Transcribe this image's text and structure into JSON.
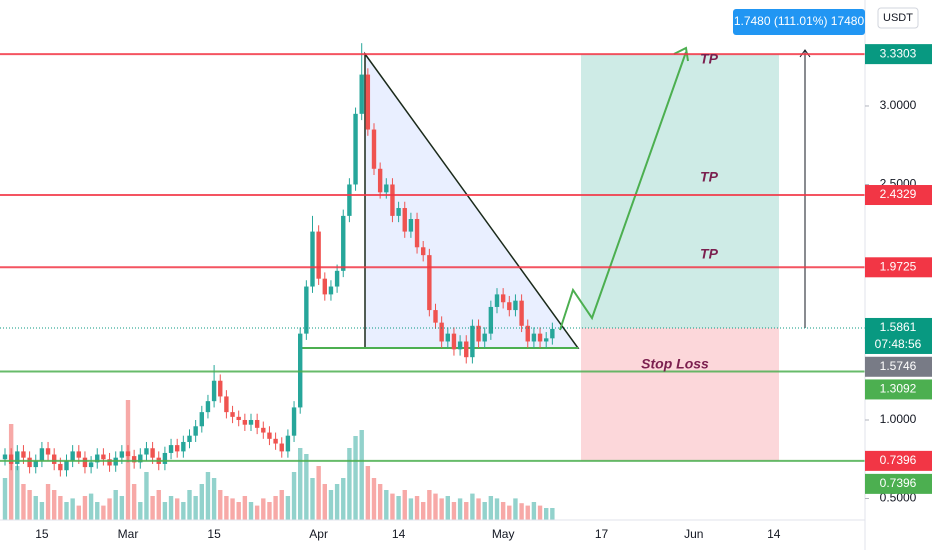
{
  "chart_data": {
    "type": "candlestick",
    "currency": "USDT",
    "measure_label": "1.7480 (111.01%) 17480",
    "countdown": "07:48:56",
    "annotations": [
      "TP",
      "TP",
      "TP",
      "Stop Loss"
    ],
    "up_color": "#26a69a",
    "down_color": "#ef5350",
    "ylim": [
      0.363,
      3.675
    ],
    "yticks": [
      {
        "value": 0.5,
        "label": "0.5000"
      },
      {
        "value": 1,
        "label": "1.0000"
      },
      {
        "value": 2.5,
        "label": "2.5000"
      },
      {
        "value": 3,
        "label": "3.0000"
      }
    ],
    "categories": [
      null,
      null,
      null,
      null,
      null,
      null,
      "15",
      null,
      null,
      null,
      null,
      null,
      null,
      null,
      null,
      null,
      null,
      null,
      null,
      null,
      "Mar",
      null,
      null,
      null,
      null,
      null,
      null,
      null,
      null,
      null,
      null,
      null,
      null,
      null,
      "15",
      null,
      null,
      null,
      null,
      null,
      null,
      null,
      null,
      null,
      null,
      null,
      null,
      null,
      null,
      null,
      null,
      "Apr",
      null,
      null,
      null,
      null,
      null,
      null,
      null,
      null,
      null,
      null,
      null,
      null,
      "14",
      null,
      null,
      null,
      null,
      null,
      null,
      null,
      null,
      null,
      null,
      null,
      null,
      null,
      null,
      null,
      null,
      "May",
      null,
      null,
      null,
      null,
      null,
      null,
      null,
      null,
      null,
      null,
      null,
      null,
      null,
      null,
      null,
      "17",
      null,
      null,
      null,
      null,
      null,
      null,
      null,
      null,
      null,
      null,
      null,
      null,
      null,
      null,
      "Jun",
      null,
      null,
      null,
      null,
      null,
      null,
      null,
      null,
      null,
      null,
      null,
      null,
      "14"
    ],
    "open": [
      0.75,
      0.78,
      0.72,
      0.8,
      0.76,
      0.7,
      0.74,
      0.82,
      0.78,
      0.72,
      0.68,
      0.74,
      0.8,
      0.76,
      0.7,
      0.73,
      0.78,
      0.75,
      0.71,
      0.76,
      0.8,
      0.77,
      0.73,
      0.78,
      0.82,
      0.76,
      0.72,
      0.79,
      0.84,
      0.8,
      0.86,
      0.9,
      0.96,
      1.05,
      1.12,
      1.25,
      1.15,
      1.05,
      1.02,
      1.0,
      0.97,
      1.0,
      0.95,
      0.92,
      0.88,
      0.85,
      0.8,
      0.9,
      1.08,
      1.55,
      1.85,
      2.2,
      1.9,
      1.8,
      1.85,
      1.95,
      2.3,
      2.5,
      2.95,
      3.2,
      2.85,
      2.6,
      2.45,
      2.5,
      2.3,
      2.35,
      2.2,
      2.28,
      2.1,
      2.05,
      1.7,
      1.62,
      1.5,
      1.55,
      1.45,
      1.5,
      1.4,
      1.6,
      1.5,
      1.55,
      1.72,
      1.8,
      1.75,
      1.7,
      1.76,
      1.6,
      1.5,
      1.55,
      1.5,
      1.52,
      null,
      null,
      null,
      null,
      null,
      null,
      null,
      null,
      null,
      null,
      null,
      null,
      null,
      null,
      null,
      null,
      null,
      null,
      null,
      null,
      null,
      null,
      null,
      null,
      null,
      null,
      null,
      null,
      null,
      null,
      null,
      null,
      null,
      null,
      null,
      null
    ],
    "high": [
      0.82,
      0.82,
      0.84,
      0.84,
      0.8,
      0.78,
      0.86,
      0.86,
      0.82,
      0.76,
      0.78,
      0.84,
      0.84,
      0.8,
      0.77,
      0.82,
      0.82,
      0.79,
      0.8,
      0.84,
      0.84,
      0.81,
      0.82,
      0.86,
      0.86,
      0.8,
      0.83,
      0.88,
      0.88,
      0.9,
      0.94,
      1.0,
      1.09,
      1.16,
      1.35,
      1.29,
      1.19,
      1.09,
      1.06,
      1.04,
      1.04,
      1.04,
      0.99,
      0.96,
      0.92,
      0.89,
      0.94,
      1.12,
      1.59,
      1.89,
      2.3,
      2.24,
      1.94,
      1.89,
      1.99,
      2.34,
      2.54,
      2.99,
      3.4,
      3.24,
      2.89,
      2.64,
      2.54,
      2.54,
      2.39,
      2.39,
      2.32,
      2.32,
      2.14,
      2.09,
      1.74,
      1.66,
      1.59,
      1.59,
      1.54,
      1.54,
      1.64,
      1.64,
      1.59,
      1.76,
      1.84,
      1.84,
      1.79,
      1.8,
      1.8,
      1.64,
      1.59,
      1.59,
      1.56,
      1.62,
      null,
      null,
      null,
      null,
      null,
      null,
      null,
      null,
      null,
      null,
      null,
      null,
      null,
      null,
      null,
      null,
      null,
      null,
      null,
      null,
      null,
      null,
      null,
      null,
      null,
      null,
      null,
      null,
      null,
      null,
      null,
      null,
      null,
      null,
      null,
      null
    ],
    "low": [
      0.71,
      0.68,
      0.68,
      0.72,
      0.66,
      0.66,
      0.7,
      0.74,
      0.68,
      0.64,
      0.64,
      0.7,
      0.72,
      0.66,
      0.66,
      0.69,
      0.71,
      0.67,
      0.67,
      0.72,
      0.73,
      0.69,
      0.69,
      0.74,
      0.72,
      0.68,
      0.68,
      0.75,
      0.76,
      0.76,
      0.82,
      0.86,
      0.92,
      1.01,
      1.08,
      1.11,
      1.01,
      0.98,
      0.96,
      0.93,
      0.93,
      0.91,
      0.88,
      0.84,
      0.81,
      0.76,
      0.76,
      0.86,
      1.04,
      1.51,
      1.81,
      1.86,
      1.76,
      1.76,
      1.81,
      1.91,
      2.26,
      2.46,
      2.91,
      2.81,
      2.56,
      2.41,
      2.41,
      2.26,
      2.26,
      2.16,
      2.16,
      2.06,
      2.01,
      1.66,
      1.58,
      1.46,
      1.46,
      1.41,
      1.41,
      1.36,
      1.36,
      1.46,
      1.46,
      1.51,
      1.68,
      1.71,
      1.66,
      1.66,
      1.56,
      1.46,
      1.46,
      1.46,
      1.46,
      1.48,
      null,
      null,
      null,
      null,
      null,
      null,
      null,
      null,
      null,
      null,
      null,
      null,
      null,
      null,
      null,
      null,
      null,
      null,
      null,
      null,
      null,
      null,
      null,
      null,
      null,
      null,
      null,
      null,
      null,
      null,
      null,
      null,
      null,
      null,
      null,
      null
    ],
    "close": [
      0.78,
      0.72,
      0.8,
      0.76,
      0.7,
      0.74,
      0.82,
      0.78,
      0.72,
      0.68,
      0.74,
      0.8,
      0.76,
      0.7,
      0.73,
      0.78,
      0.75,
      0.71,
      0.76,
      0.8,
      0.77,
      0.73,
      0.78,
      0.82,
      0.76,
      0.72,
      0.79,
      0.84,
      0.8,
      0.86,
      0.9,
      0.96,
      1.05,
      1.12,
      1.25,
      1.15,
      1.05,
      1.02,
      1.0,
      0.97,
      1.0,
      0.95,
      0.92,
      0.88,
      0.85,
      0.8,
      0.9,
      1.08,
      1.55,
      1.85,
      2.2,
      1.9,
      1.8,
      1.85,
      1.95,
      2.3,
      2.5,
      2.95,
      3.2,
      2.85,
      2.6,
      2.45,
      2.5,
      2.3,
      2.35,
      2.2,
      2.28,
      2.1,
      2.05,
      1.7,
      1.62,
      1.5,
      1.55,
      1.45,
      1.5,
      1.4,
      1.6,
      1.5,
      1.55,
      1.72,
      1.8,
      1.75,
      1.7,
      1.76,
      1.6,
      1.5,
      1.55,
      1.5,
      1.52,
      1.58,
      null,
      null,
      null,
      null,
      null,
      null,
      null,
      null,
      null,
      null,
      null,
      null,
      null,
      null,
      null,
      null,
      null,
      null,
      null,
      null,
      null,
      null,
      null,
      null,
      null,
      null,
      null,
      null,
      null,
      null,
      null,
      null,
      null,
      null,
      null,
      null
    ],
    "volume": [
      35,
      80,
      45,
      30,
      25,
      20,
      15,
      30,
      25,
      20,
      15,
      18,
      12,
      20,
      22,
      15,
      12,
      18,
      25,
      20,
      100,
      30,
      15,
      40,
      20,
      25,
      15,
      20,
      18,
      15,
      25,
      20,
      30,
      40,
      35,
      25,
      20,
      18,
      15,
      20,
      15,
      12,
      18,
      15,
      20,
      25,
      20,
      40,
      60,
      55,
      35,
      45,
      30,
      25,
      30,
      35,
      60,
      70,
      75,
      45,
      35,
      30,
      25,
      22,
      20,
      25,
      18,
      20,
      15,
      25,
      22,
      18,
      20,
      15,
      18,
      15,
      22,
      18,
      15,
      20,
      18,
      15,
      12,
      18,
      14,
      12,
      15,
      12,
      10,
      10,
      null,
      null,
      null,
      null,
      null,
      null,
      null,
      null,
      null,
      null,
      null,
      null,
      null,
      null,
      null,
      null,
      null,
      null,
      null,
      null,
      null,
      null,
      null,
      null,
      null,
      null,
      null,
      null,
      null,
      null,
      null,
      null,
      null,
      null,
      null,
      null
    ],
    "levels": [
      {
        "value": 3.3303,
        "color": "#f23645"
      },
      {
        "value": 2.4329,
        "color": "#f23645"
      },
      {
        "value": 1.9725,
        "color": "#f23645"
      },
      {
        "value": 1.3092,
        "color": "#4caf50"
      },
      {
        "value": 0.7396,
        "color": "#4caf50"
      }
    ],
    "price_labels": [
      {
        "value": 3.3303,
        "color": "#089981"
      },
      {
        "value": 2.4329,
        "color": "#f23645"
      },
      {
        "value": 1.9725,
        "color": "#f23645"
      },
      {
        "value": 1.5861,
        "color": "#089981"
      },
      {
        "value": 1.5746,
        "color": "#787b86"
      },
      {
        "value": 1.3092,
        "color": "#4caf50"
      },
      {
        "value": 0.7396,
        "color": "#f23645"
      },
      {
        "value": 0.7396,
        "color": "#4caf50"
      }
    ]
  }
}
